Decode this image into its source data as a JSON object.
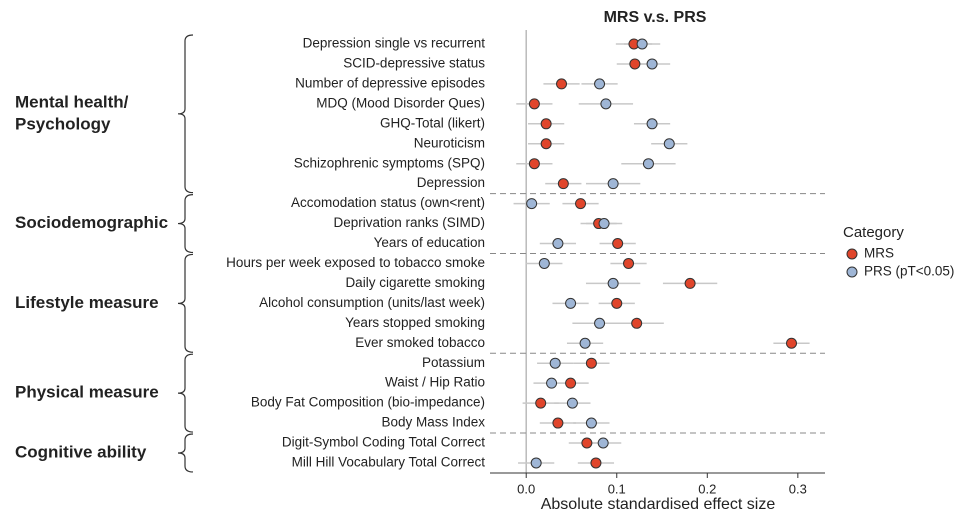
{
  "chart_data": {
    "type": "dot",
    "title": "MRS v.s. PRS",
    "x_label": "Absolute standardised effect size",
    "xlim": [
      -0.04,
      0.33
    ],
    "xticks": [
      {
        "value": 0,
        "label": "0.0"
      },
      0.1,
      0.2,
      0.3
    ],
    "legend_title": "Category",
    "groups": [
      {
        "label": [
          "Mental health/",
          "Psychology"
        ],
        "categories": [
          "Depression single vs recurrent",
          "SCID-depressive status",
          "Number of depressive episodes",
          "MDQ (Mood Disorder Ques)",
          "GHQ-Total (likert)",
          "Neuroticism",
          "Schizophrenic symptoms (SPQ)",
          "Depression"
        ]
      },
      {
        "label": [
          "Sociodemographic"
        ],
        "categories": [
          "Accomodation status (own<rent)",
          "Deprivation ranks (SIMD)",
          "Years of education"
        ]
      },
      {
        "label": [
          "Lifestyle measure"
        ],
        "categories": [
          "Hours per week exposed to tobacco smoke",
          "Daily cigarette smoking",
          "Alcohol consumption (units/last week)",
          "Years stopped smoking",
          "Ever smoked tobacco"
        ]
      },
      {
        "label": [
          "Physical measure"
        ],
        "categories": [
          "Potassium",
          "Waist / Hip Ratio",
          "Body Fat Composition (bio-impedance)",
          "Body Mass Index"
        ]
      },
      {
        "label": [
          "Cognitive ability"
        ],
        "categories": [
          "Digit-Symbol Coding Total Correct",
          "Mill Hill Vocabulary Total Correct"
        ]
      }
    ],
    "series": [
      {
        "name": "MRS",
        "color": "#e0452b",
        "values": [
          [
            0.119,
            0.12,
            0.039,
            0.009,
            0.022,
            0.022,
            0.009,
            0.041
          ],
          [
            0.06,
            0.08,
            0.101
          ],
          [
            0.113,
            0.181,
            0.1,
            0.122,
            0.293
          ],
          [
            0.072,
            0.049,
            0.016,
            0.035
          ],
          [
            0.067,
            0.077
          ]
        ],
        "errors": [
          [
            0.02,
            0.02,
            0.02,
            0.02,
            0.02,
            0.02,
            0.02,
            0.02
          ],
          [
            0.02,
            0.02,
            0.02
          ],
          [
            0.02,
            0.03,
            0.02,
            0.03,
            0.02
          ],
          [
            0.02,
            0.02,
            0.02,
            0.02
          ],
          [
            0.02,
            0.02
          ]
        ]
      },
      {
        "name": "PRS (pT<0.05)",
        "color": "#9fb6d6",
        "values": [
          [
            0.128,
            0.139,
            0.081,
            0.088,
            0.139,
            0.158,
            0.135,
            0.096
          ],
          [
            0.006,
            0.086,
            0.035
          ],
          [
            0.02,
            0.096,
            0.049,
            0.081,
            0.065
          ],
          [
            0.032,
            0.028,
            0.051,
            0.072
          ],
          [
            0.085,
            0.011
          ]
        ],
        "errors": [
          [
            0.02,
            0.02,
            0.02,
            0.03,
            0.02,
            0.02,
            0.03,
            0.03
          ],
          [
            0.02,
            0.02,
            0.02
          ],
          [
            0.02,
            0.03,
            0.02,
            0.03,
            0.02
          ],
          [
            0.02,
            0.02,
            0.02,
            0.02
          ],
          [
            0.02,
            0.02
          ]
        ]
      }
    ]
  }
}
